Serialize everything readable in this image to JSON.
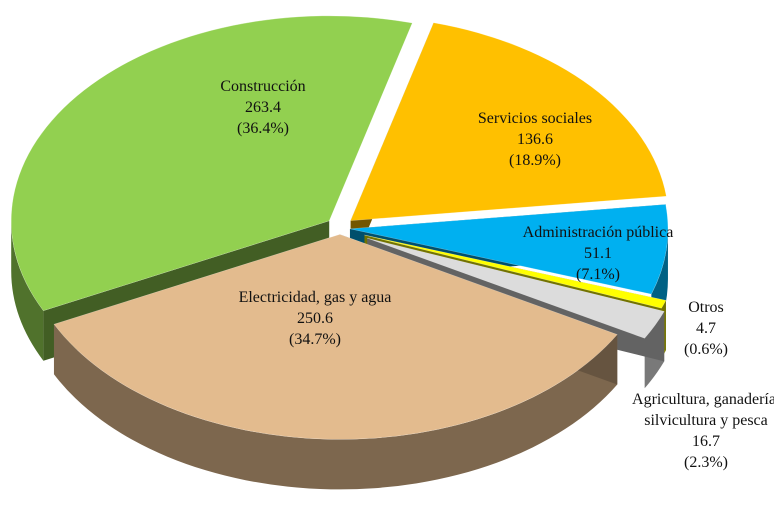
{
  "chart_data": {
    "type": "pie",
    "categories": [
      "Construcción",
      "Servicios sociales",
      "Administración pública",
      "Otros",
      "Agricultura, ganadería, silvicultura y pesca",
      "Electricidad, gas y agua"
    ],
    "values": [
      263.4,
      136.6,
      51.1,
      4.7,
      16.7,
      250.6
    ],
    "percent_labels": [
      "(36.4%)",
      "(18.9%)",
      "(7.1%)",
      "(0.6%)",
      "(2.3%)",
      "(34.7%)"
    ],
    "colors": [
      "#92d050",
      "#ffc000",
      "#00b0f0",
      "#ffff00",
      "#dcdcdc",
      "#e3bb8e"
    ]
  }
}
